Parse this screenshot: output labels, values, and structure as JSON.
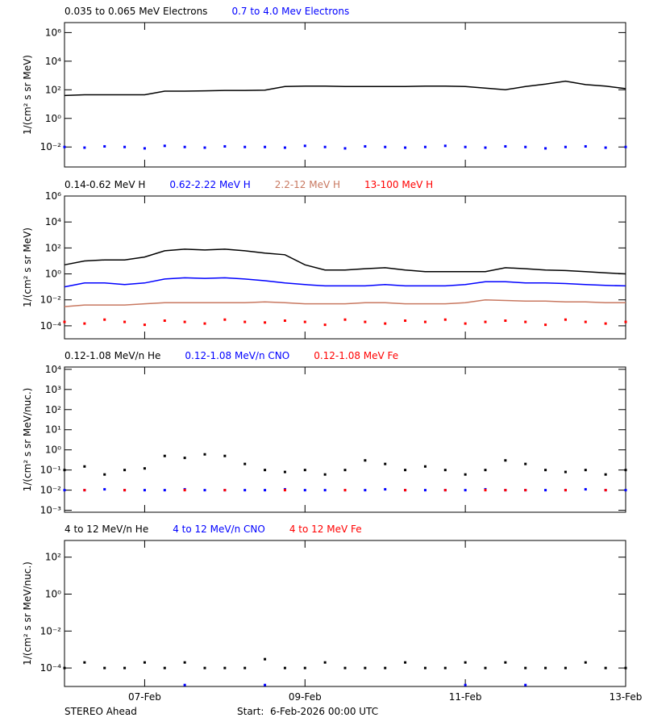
{
  "chart_data": [
    {
      "type": "line",
      "log": true,
      "x": [
        0,
        0.25,
        0.5,
        0.75,
        1,
        1.25,
        1.5,
        1.75,
        2,
        2.25,
        2.5,
        2.75,
        3,
        3.25,
        3.5,
        3.75,
        4,
        4.25,
        4.5,
        4.75,
        5,
        5.25,
        5.5,
        5.75,
        6,
        6.25,
        6.5,
        6.75,
        7
      ],
      "xlim": [
        0,
        7
      ],
      "ylim": [
        0.0004,
        5000000
      ],
      "y_label": "1/(cm² s sr MeV)",
      "yticks": [
        {
          "value": 0.01,
          "label": "10⁻²"
        },
        {
          "value": 1,
          "label": "10⁰"
        },
        {
          "value": 100,
          "label": "10²"
        },
        {
          "value": 10000,
          "label": "10⁴"
        },
        {
          "value": 1000000,
          "label": "10⁶"
        }
      ],
      "series": [
        {
          "name": "0.035 to 0.065 MeV Electrons",
          "color": "#000000",
          "mode": "line",
          "values": [
            40,
            45,
            45,
            45,
            45,
            80,
            80,
            85,
            90,
            90,
            95,
            170,
            180,
            180,
            170,
            170,
            170,
            170,
            180,
            180,
            170,
            130,
            100,
            170,
            250,
            400,
            230,
            180,
            120
          ]
        },
        {
          "name": "0.7 to 4.0 Mev Electrons",
          "color": "#0000ff",
          "mode": "points",
          "values": [
            0.01,
            0.009,
            0.011,
            0.01,
            0.008,
            0.012,
            0.01,
            0.009,
            0.011,
            0.01,
            0.01,
            0.009,
            0.012,
            0.01,
            0.008,
            0.011,
            0.01,
            0.009,
            0.01,
            0.012,
            0.01,
            0.009,
            0.011,
            0.01,
            0.008,
            0.01,
            0.011,
            0.009,
            0.01
          ]
        }
      ]
    },
    {
      "type": "line",
      "log": true,
      "x": [
        0,
        0.25,
        0.5,
        0.75,
        1,
        1.25,
        1.5,
        1.75,
        2,
        2.25,
        2.5,
        2.75,
        3,
        3.25,
        3.5,
        3.75,
        4,
        4.25,
        4.5,
        4.75,
        5,
        5.25,
        5.5,
        5.75,
        6,
        6.25,
        6.5,
        6.75,
        7
      ],
      "xlim": [
        0,
        7
      ],
      "ylim": [
        1e-05,
        1000000
      ],
      "y_label": "1/(cm² s sr MeV)",
      "yticks": [
        {
          "value": 0.0001,
          "label": "10⁻⁴"
        },
        {
          "value": 0.01,
          "label": "10⁻²"
        },
        {
          "value": 1,
          "label": "10⁰"
        },
        {
          "value": 100,
          "label": "10²"
        },
        {
          "value": 10000,
          "label": "10⁴"
        },
        {
          "value": 1000000,
          "label": "10⁶"
        }
      ],
      "series": [
        {
          "name": "0.14-0.62 MeV H",
          "color": "#000000",
          "mode": "line",
          "values": [
            5,
            10,
            12,
            12,
            20,
            60,
            80,
            70,
            80,
            60,
            40,
            30,
            5,
            2,
            2,
            2.5,
            3,
            2,
            1.5,
            1.5,
            1.5,
            1.5,
            3,
            2.5,
            2,
            1.8,
            1.5,
            1.2,
            1
          ]
        },
        {
          "name": "0.62-2.22 MeV H",
          "color": "#0000ff",
          "mode": "line",
          "values": [
            0.1,
            0.2,
            0.2,
            0.15,
            0.2,
            0.4,
            0.5,
            0.45,
            0.5,
            0.4,
            0.3,
            0.2,
            0.15,
            0.12,
            0.12,
            0.12,
            0.15,
            0.12,
            0.12,
            0.12,
            0.15,
            0.25,
            0.25,
            0.2,
            0.2,
            0.18,
            0.15,
            0.13,
            0.12
          ]
        },
        {
          "name": "2.2-12 MeV H",
          "color": "#c87860",
          "mode": "line",
          "values": [
            0.003,
            0.004,
            0.004,
            0.004,
            0.005,
            0.006,
            0.006,
            0.006,
            0.006,
            0.006,
            0.007,
            0.006,
            0.005,
            0.005,
            0.005,
            0.006,
            0.006,
            0.005,
            0.005,
            0.005,
            0.006,
            0.01,
            0.009,
            0.008,
            0.008,
            0.007,
            0.007,
            0.006,
            0.006
          ]
        },
        {
          "name": "13-100 MeV H",
          "color": "#ff0000",
          "mode": "points",
          "values": [
            0.0002,
            0.00015,
            0.0003,
            0.0002,
            0.00012,
            0.00025,
            0.0002,
            0.00015,
            0.0003,
            0.0002,
            0.00018,
            0.00025,
            0.0002,
            0.00012,
            0.0003,
            0.0002,
            0.00015,
            0.00025,
            0.0002,
            0.0003,
            0.00015,
            0.0002,
            0.00025,
            0.0002,
            0.00012,
            0.0003,
            0.0002,
            0.00015,
            0.0002
          ]
        }
      ]
    },
    {
      "type": "line",
      "log": true,
      "x": [
        0,
        0.25,
        0.5,
        0.75,
        1,
        1.25,
        1.5,
        1.75,
        2,
        2.25,
        2.5,
        2.75,
        3,
        3.25,
        3.5,
        3.75,
        4,
        4.25,
        4.5,
        4.75,
        5,
        5.25,
        5.5,
        5.75,
        6,
        6.25,
        6.5,
        6.75,
        7
      ],
      "xlim": [
        0,
        7
      ],
      "ylim": [
        0.0008,
        13000
      ],
      "y_label": "1/(cm² s sr MeV/nuc.)",
      "yticks": [
        {
          "value": 0.001,
          "label": "10⁻³"
        },
        {
          "value": 0.01,
          "label": "10⁻²"
        },
        {
          "value": 0.1,
          "label": "10⁻¹"
        },
        {
          "value": 1,
          "label": "10⁰"
        },
        {
          "value": 10,
          "label": "10¹"
        },
        {
          "value": 100,
          "label": "10²"
        },
        {
          "value": 1000,
          "label": "10³"
        },
        {
          "value": 10000,
          "label": "10⁴"
        }
      ],
      "series": [
        {
          "name": "0.12-1.08 MeV/n He",
          "color": "#000000",
          "mode": "points",
          "values": [
            0.1,
            0.15,
            0.06,
            0.1,
            0.12,
            0.5,
            0.4,
            0.6,
            0.5,
            0.2,
            0.1,
            0.08,
            0.1,
            0.06,
            0.1,
            0.3,
            0.2,
            0.1,
            0.15,
            0.1,
            0.06,
            0.1,
            0.3,
            0.2,
            0.1,
            0.08,
            0.1,
            0.06,
            0.1
          ]
        },
        {
          "name": "0.12-1.08 MeV/n CNO",
          "color": "#0000ff",
          "mode": "points",
          "values": [
            0.01,
            0.01,
            0.011,
            0.01,
            0.01,
            0.01,
            0.011,
            0.01,
            0.01,
            0.01,
            0.01,
            0.011,
            0.01,
            0.01,
            0.01,
            0.01,
            0.011,
            0.01,
            0.01,
            0.01,
            0.01,
            0.011,
            0.01,
            0.01,
            0.01,
            0.01,
            0.011,
            0.01,
            0.01
          ]
        },
        {
          "name": "0.12-1.08 MeV Fe",
          "color": "#ff0000",
          "mode": "points",
          "values": [
            null,
            0.01,
            null,
            0.01,
            null,
            null,
            0.01,
            null,
            0.01,
            null,
            null,
            0.01,
            null,
            null,
            0.01,
            null,
            null,
            0.01,
            null,
            0.01,
            null,
            0.01,
            0.01,
            0.01,
            null,
            0.01,
            null,
            0.01,
            null
          ]
        }
      ]
    },
    {
      "type": "line",
      "log": true,
      "x": [
        0,
        0.25,
        0.5,
        0.75,
        1,
        1.25,
        1.5,
        1.75,
        2,
        2.25,
        2.5,
        2.75,
        3,
        3.25,
        3.5,
        3.75,
        4,
        4.25,
        4.5,
        4.75,
        5,
        5.25,
        5.5,
        5.75,
        6,
        6.25,
        6.5,
        6.75,
        7
      ],
      "xlim": [
        0,
        7
      ],
      "ylim": [
        1e-05,
        800
      ],
      "y_label": "1/(cm² s sr MeV/nuc.)",
      "xticks": [
        {
          "value": 1,
          "label": "07-Feb"
        },
        {
          "value": 3,
          "label": "09-Feb"
        },
        {
          "value": 5,
          "label": "11-Feb"
        },
        {
          "value": 7,
          "label": "13-Feb"
        }
      ],
      "yticks": [
        {
          "value": 0.0001,
          "label": "10⁻⁴"
        },
        {
          "value": 0.01,
          "label": "10⁻²"
        },
        {
          "value": 1,
          "label": "10⁰"
        },
        {
          "value": 100,
          "label": "10²"
        }
      ],
      "series": [
        {
          "name": "4 to 12 MeV/n He",
          "color": "#000000",
          "mode": "points",
          "values": [
            0.0001,
            0.0002,
            0.0001,
            0.0001,
            0.0002,
            0.0001,
            0.0002,
            0.0001,
            0.0001,
            0.0001,
            0.0003,
            0.0001,
            0.0001,
            0.0002,
            0.0001,
            0.0001,
            0.0001,
            0.0002,
            0.0001,
            0.0001,
            0.0002,
            0.0001,
            0.0002,
            0.0001,
            0.0001,
            0.0001,
            0.0002,
            0.0001,
            0.0001
          ]
        },
        {
          "name": "4 to 12 MeV/n CNO",
          "color": "#0000ff",
          "mode": "points",
          "values": [
            null,
            null,
            null,
            null,
            null,
            null,
            1.2e-05,
            null,
            null,
            null,
            1.2e-05,
            null,
            null,
            null,
            null,
            null,
            null,
            null,
            null,
            null,
            1.2e-05,
            null,
            null,
            1.2e-05,
            null,
            null,
            null,
            null,
            null
          ]
        },
        {
          "name": "4 to 12 MeV Fe",
          "color": "#ff0000",
          "mode": "points",
          "values": [
            null,
            null,
            null,
            null,
            null,
            null,
            null,
            null,
            null,
            null,
            null,
            null,
            null,
            null,
            null,
            null,
            null,
            null,
            null,
            null,
            null,
            null,
            null,
            null,
            null,
            null,
            null,
            null,
            null
          ]
        }
      ]
    }
  ],
  "footer": {
    "left": "STEREO Ahead",
    "start": "Start:  6-Feb-2026 00:00 UTC"
  }
}
